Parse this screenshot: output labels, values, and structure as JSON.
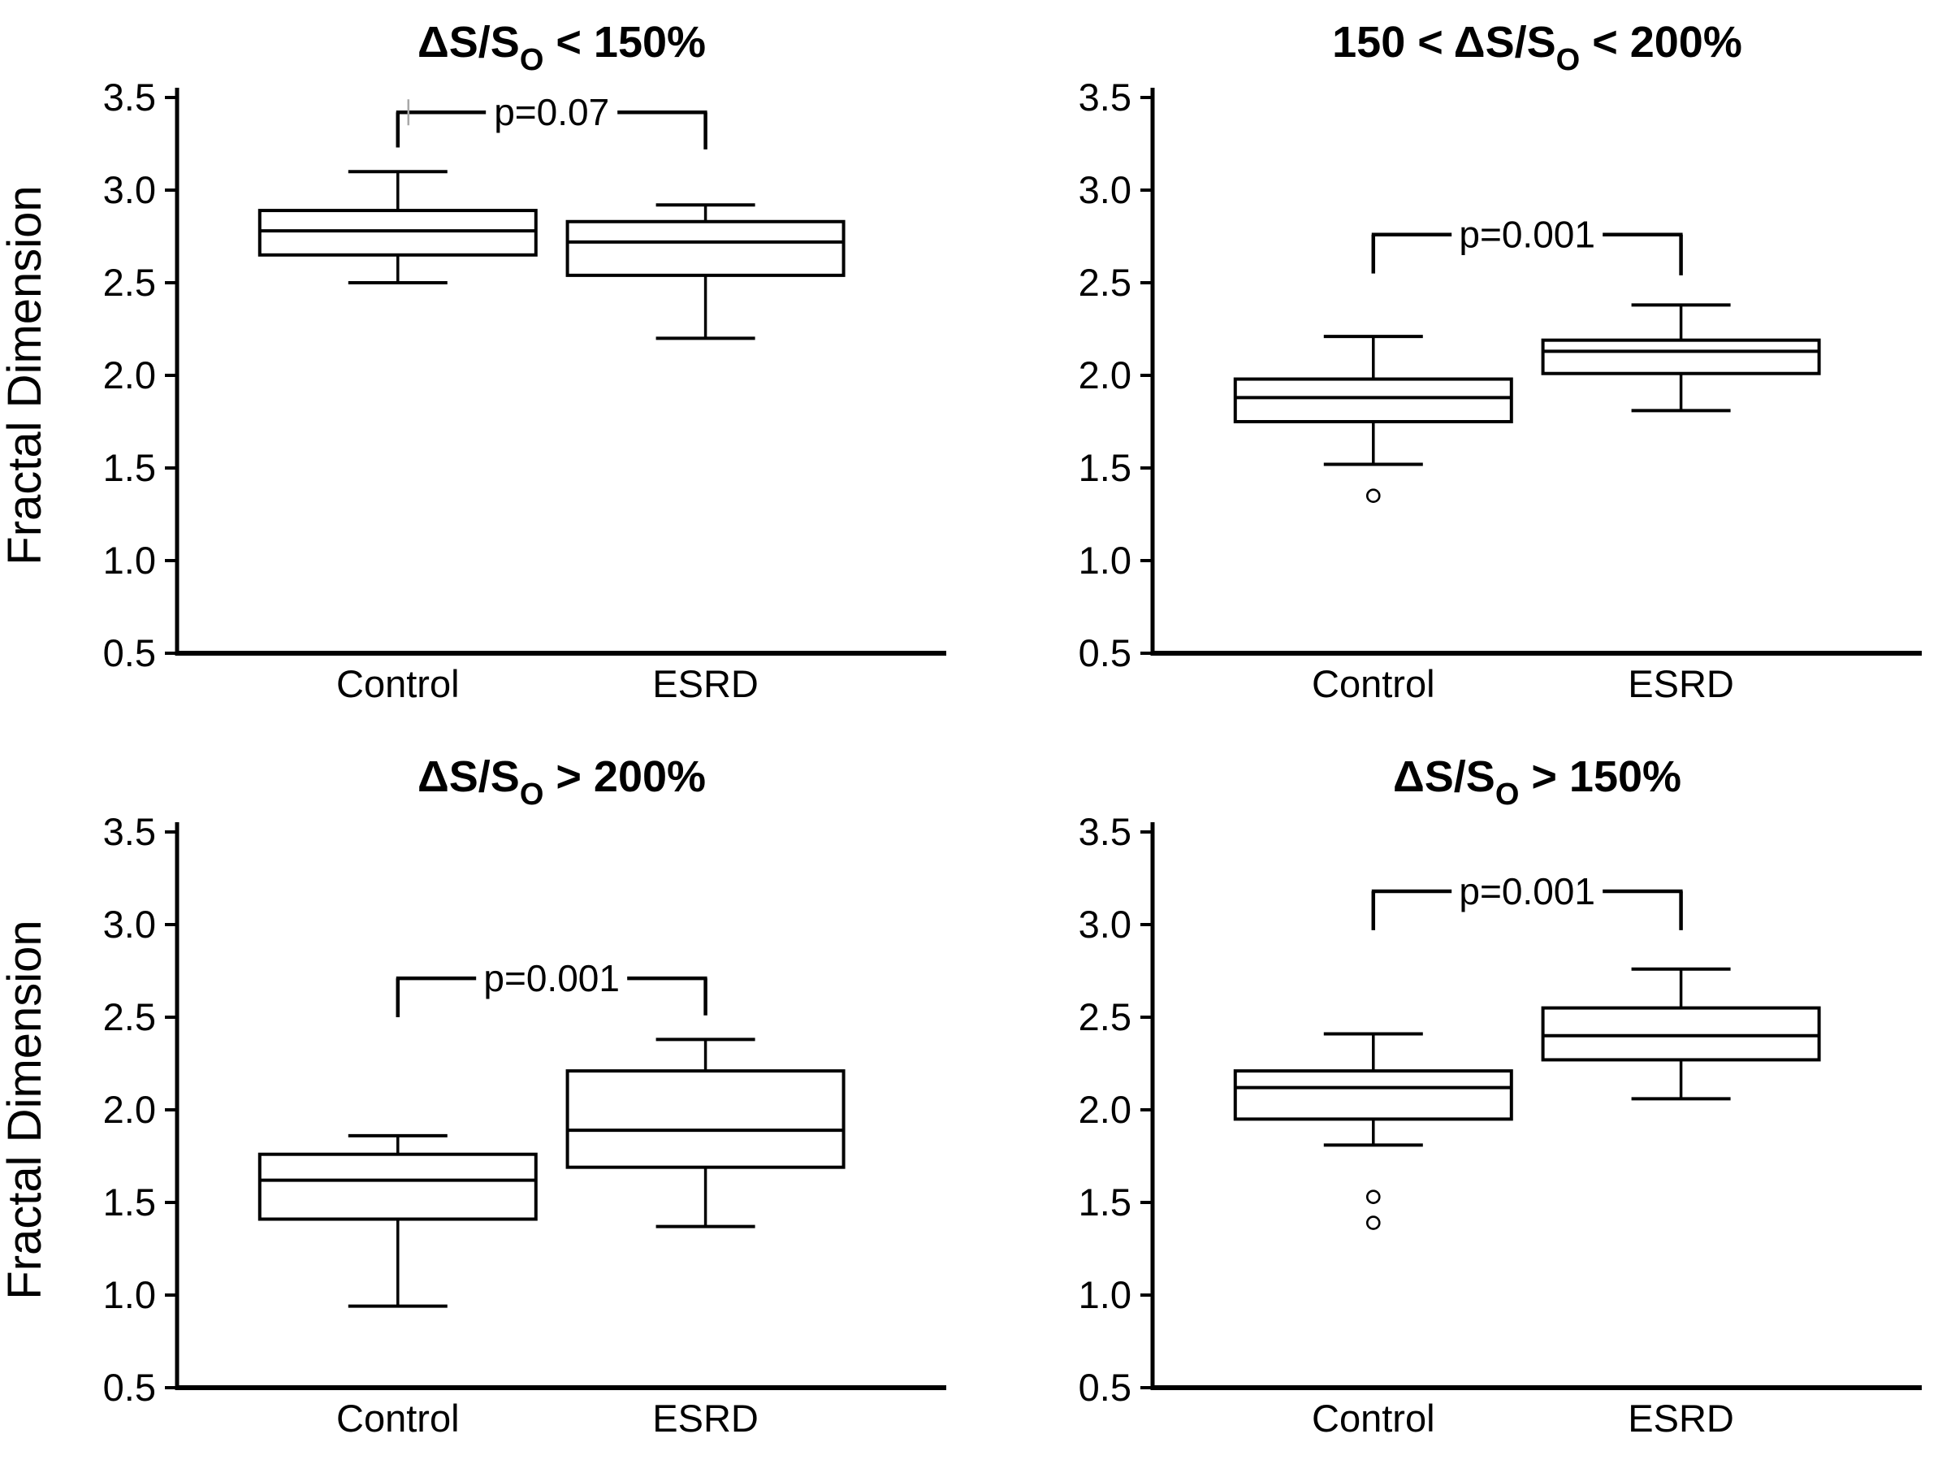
{
  "figure": {
    "background": "#ffffff",
    "line_color": "#000000",
    "artifact_color": "#a8a8a8",
    "ylabel": "Fractal Dimension"
  },
  "chart_data": {
    "type": "boxplot-grid",
    "grid_rows": 2,
    "grid_cols": 2,
    "ylabel": "Fractal Dimension",
    "ylim": [
      0.5,
      3.5
    ],
    "yticks": [
      3.5,
      3.0,
      2.5,
      2.0,
      1.5,
      1.0,
      0.5
    ],
    "ytick_labels": [
      "3.5",
      "3.0",
      "2.5",
      "2.0",
      "1.5",
      "1.0",
      "0.5"
    ],
    "grid_lines": false,
    "categories": [
      "Control",
      "ESRD"
    ],
    "panels": [
      {
        "title": {
          "prefix": "ΔS/S",
          "sub": "O",
          "suffix": " < 150%"
        },
        "p_label": "p=0.07",
        "bracket": {
          "top": 3.42,
          "left_drop": 3.23,
          "right_drop": 3.22
        },
        "has_ylabel": true,
        "artifact_line": true,
        "boxes": [
          {
            "category": "Control",
            "whisker_low": 2.5,
            "q1": 2.65,
            "median": 2.78,
            "q3": 2.89,
            "whisker_high": 3.1,
            "outliers": []
          },
          {
            "category": "ESRD",
            "whisker_low": 2.2,
            "q1": 2.54,
            "median": 2.72,
            "q3": 2.83,
            "whisker_high": 2.92,
            "outliers": []
          }
        ]
      },
      {
        "title": {
          "prefix": "150 < ΔS/S",
          "sub": "O",
          "suffix": " < 200%"
        },
        "p_label": "p=0.001",
        "bracket": {
          "top": 2.76,
          "left_drop": 2.55,
          "right_drop": 2.54
        },
        "has_ylabel": false,
        "artifact_line": false,
        "boxes": [
          {
            "category": "Control",
            "whisker_low": 1.52,
            "q1": 1.75,
            "median": 1.88,
            "q3": 1.98,
            "whisker_high": 2.21,
            "outliers": [
              1.35
            ]
          },
          {
            "category": "ESRD",
            "whisker_low": 1.81,
            "q1": 2.01,
            "median": 2.13,
            "q3": 2.19,
            "whisker_high": 2.38,
            "outliers": []
          }
        ]
      },
      {
        "title": {
          "prefix": "ΔS/S",
          "sub": "O",
          "suffix": " > 200%"
        },
        "p_label": "p=0.001",
        "bracket": {
          "top": 2.71,
          "left_drop": 2.5,
          "right_drop": 2.51
        },
        "has_ylabel": true,
        "artifact_line": false,
        "boxes": [
          {
            "category": "Control",
            "whisker_low": 0.94,
            "q1": 1.41,
            "median": 1.62,
            "q3": 1.76,
            "whisker_high": 1.86,
            "outliers": []
          },
          {
            "category": "ESRD",
            "whisker_low": 1.37,
            "q1": 1.69,
            "median": 1.89,
            "q3": 2.21,
            "whisker_high": 2.38,
            "outliers": []
          }
        ]
      },
      {
        "title": {
          "prefix": "ΔS/S",
          "sub": "O",
          "suffix": " > 150%"
        },
        "p_label": "p=0.001",
        "bracket": {
          "top": 3.18,
          "left_drop": 2.97,
          "right_drop": 2.97
        },
        "has_ylabel": false,
        "artifact_line": false,
        "boxes": [
          {
            "category": "Control",
            "whisker_low": 1.81,
            "q1": 1.95,
            "median": 2.12,
            "q3": 2.21,
            "whisker_high": 2.41,
            "outliers": [
              1.53,
              1.39
            ]
          },
          {
            "category": "ESRD",
            "whisker_low": 2.06,
            "q1": 2.27,
            "median": 2.4,
            "q3": 2.55,
            "whisker_high": 2.76,
            "outliers": []
          }
        ]
      }
    ]
  }
}
